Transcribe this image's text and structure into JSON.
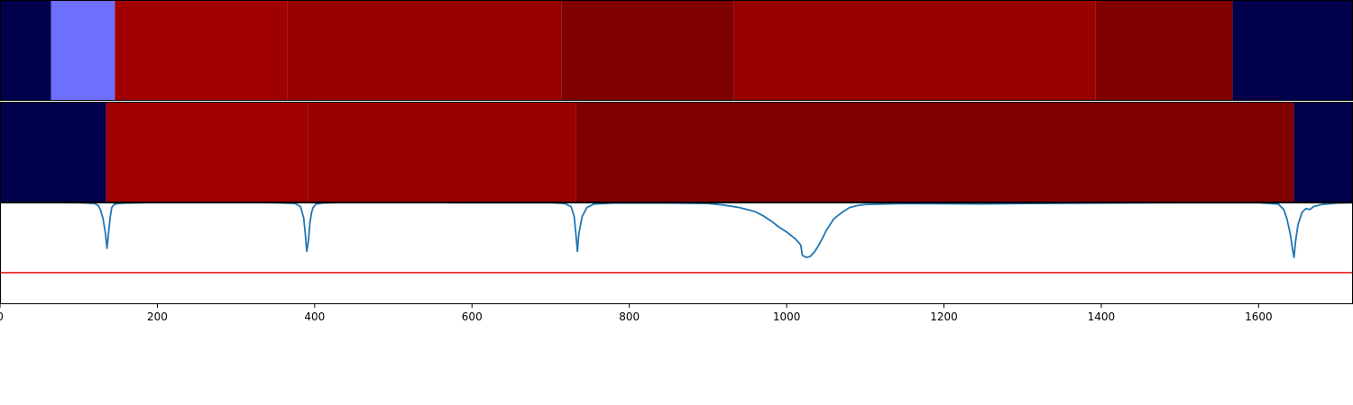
{
  "chart_data": {
    "type": "heatmap",
    "xlim": [
      0,
      1720
    ],
    "grid": false,
    "x_ticks": [
      0,
      200,
      400,
      600,
      800,
      1000,
      1200,
      1400,
      1600
    ],
    "x_tick_labels": [
      "0",
      "200",
      "400",
      "600",
      "800",
      "1000",
      "1200",
      "1400",
      "1600"
    ],
    "segment_rows": [
      {
        "segments": [
          {
            "start": 0,
            "end": 65,
            "color": "#00004c"
          },
          {
            "start": 65,
            "end": 146,
            "color": "#6f6fff"
          },
          {
            "start": 146,
            "end": 365,
            "color": "#a00000"
          },
          {
            "start": 365,
            "end": 714,
            "color": "#990000"
          },
          {
            "start": 714,
            "end": 933,
            "color": "#7f0000"
          },
          {
            "start": 933,
            "end": 1393,
            "color": "#990000"
          },
          {
            "start": 1393,
            "end": 1567,
            "color": "#800000"
          },
          {
            "start": 1567,
            "end": 1720,
            "color": "#00004c"
          }
        ]
      },
      {
        "segments": [
          {
            "start": 0,
            "end": 135,
            "color": "#00004c"
          },
          {
            "start": 135,
            "end": 392,
            "color": "#a00000"
          },
          {
            "start": 392,
            "end": 732,
            "color": "#990000"
          },
          {
            "start": 732,
            "end": 1645,
            "color": "#7f0000"
          },
          {
            "start": 1645,
            "end": 1720,
            "color": "#00004c"
          }
        ]
      }
    ],
    "curve": {
      "color": "#1f77b4",
      "ylim": [
        0,
        1
      ],
      "x": [
        0,
        60,
        100,
        110,
        120,
        125,
        128,
        131,
        134,
        136,
        138,
        140,
        142,
        145,
        150,
        160,
        200,
        300,
        350,
        375,
        382,
        386,
        388,
        390,
        392,
        394,
        396,
        398,
        402,
        410,
        430,
        500,
        600,
        700,
        718,
        726,
        730,
        732,
        734,
        736,
        740,
        746,
        755,
        780,
        850,
        900,
        920,
        940,
        960,
        970,
        980,
        990,
        1000,
        1010,
        1015,
        1018,
        1020,
        1025,
        1030,
        1035,
        1040,
        1045,
        1050,
        1055,
        1060,
        1070,
        1080,
        1090,
        1100,
        1150,
        1200,
        1250,
        1300,
        1400,
        1500,
        1600,
        1625,
        1632,
        1636,
        1640,
        1643,
        1645,
        1647,
        1650,
        1655,
        1660,
        1665,
        1670,
        1680,
        1700,
        1720
      ],
      "y": [
        1.0,
        1.0,
        0.998,
        0.995,
        0.99,
        0.97,
        0.92,
        0.84,
        0.7,
        0.55,
        0.7,
        0.85,
        0.95,
        0.98,
        0.99,
        0.995,
        1.0,
        1.0,
        0.998,
        0.99,
        0.96,
        0.85,
        0.7,
        0.52,
        0.62,
        0.8,
        0.9,
        0.95,
        0.985,
        0.995,
        1.0,
        1.0,
        0.998,
        0.998,
        0.99,
        0.96,
        0.86,
        0.7,
        0.52,
        0.7,
        0.86,
        0.95,
        0.985,
        0.995,
        0.995,
        0.99,
        0.975,
        0.95,
        0.91,
        0.87,
        0.82,
        0.76,
        0.71,
        0.65,
        0.61,
        0.58,
        0.48,
        0.46,
        0.47,
        0.51,
        0.57,
        0.64,
        0.72,
        0.78,
        0.84,
        0.9,
        0.95,
        0.97,
        0.98,
        0.99,
        0.988,
        0.986,
        0.99,
        0.995,
        0.998,
        0.998,
        0.985,
        0.93,
        0.84,
        0.7,
        0.55,
        0.46,
        0.62,
        0.78,
        0.9,
        0.94,
        0.93,
        0.96,
        0.98,
        0.995,
        0.998
      ]
    },
    "threshold": {
      "y": 0.31,
      "color": "#e41a1c"
    }
  }
}
